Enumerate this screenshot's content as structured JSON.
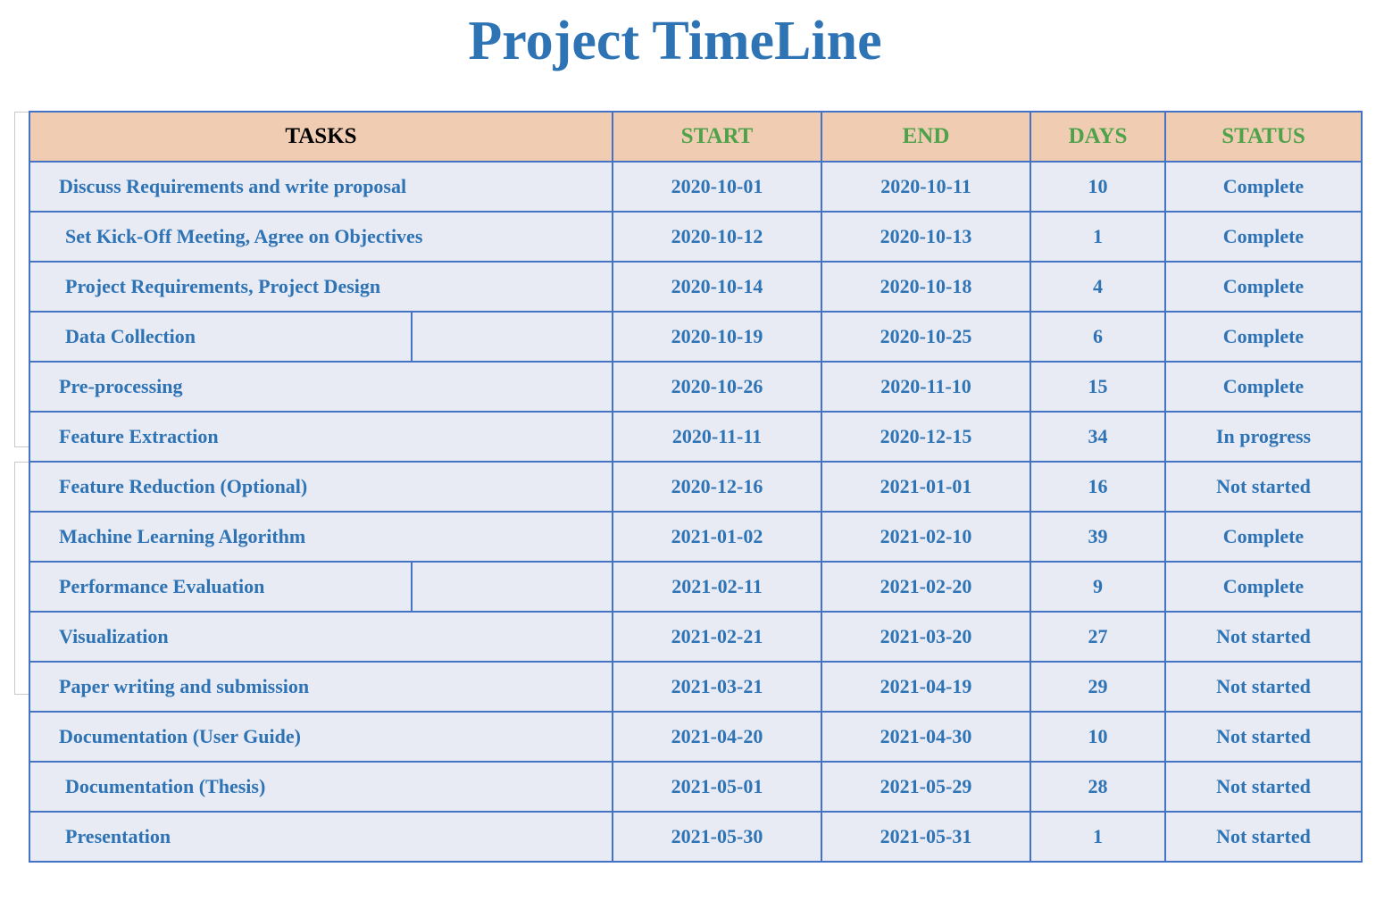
{
  "title": "Project TimeLine",
  "headers": {
    "tasks": "TASKS",
    "start": "START",
    "end": "END",
    "days": "DAYS",
    "status": "STATUS"
  },
  "rows": [
    {
      "task": "Discuss Requirements and write proposal",
      "start": "2020-10-01",
      "end": "2020-10-11",
      "days": "10",
      "status": "Complete"
    },
    {
      "task": "Set Kick-Off Meeting, Agree on Objectives",
      "start": "2020-10-12",
      "end": "2020-10-13",
      "days": "1",
      "status": "Complete"
    },
    {
      "task": "Project Requirements, Project Design",
      "start": "2020-10-14",
      "end": "2020-10-18",
      "days": "4",
      "status": "Complete"
    },
    {
      "task": "Data Collection",
      "start": "2020-10-19",
      "end": "2020-10-25",
      "days": "6",
      "status": "Complete"
    },
    {
      "task": "Pre-processing",
      "start": "2020-10-26",
      "end": "2020-11-10",
      "days": "15",
      "status": "Complete"
    },
    {
      "task": "Feature Extraction",
      "start": "2020-11-11",
      "end": "2020-12-15",
      "days": "34",
      "status": "In progress"
    },
    {
      "task": "Feature Reduction (Optional)",
      "start": "2020-12-16",
      "end": "2021-01-01",
      "days": "16",
      "status": "Not started"
    },
    {
      "task": "Machine Learning Algorithm",
      "start": "2021-01-02",
      "end": "2021-02-10",
      "days": "39",
      "status": "Complete"
    },
    {
      "task": "Performance Evaluation",
      "start": "2021-02-11",
      "end": "2021-02-20",
      "days": "9",
      "status": "Complete"
    },
    {
      "task": "Visualization",
      "start": "2021-02-21",
      "end": "2021-03-20",
      "days": "27",
      "status": "Not started"
    },
    {
      "task": "Paper writing and submission",
      "start": "2021-03-21",
      "end": "2021-04-19",
      "days": "29",
      "status": "Not started"
    },
    {
      "task": "Documentation (User Guide)",
      "start": "2021-04-20",
      "end": "2021-04-30",
      "days": "10",
      "status": "Not started"
    },
    {
      "task": "Documentation (Thesis)",
      "start": "2021-05-01",
      "end": "2021-05-29",
      "days": "28",
      "status": "Not started"
    },
    {
      "task": "Presentation",
      "start": "2021-05-30",
      "end": "2021-05-31",
      "days": "1",
      "status": "Not started"
    }
  ],
  "colors": {
    "title": "#2e74b5",
    "header_bg": "#f0cdb2",
    "header_text_green": "#4ea24a",
    "cell_bg": "#e8eaf4",
    "cell_text_blue": "#2e74b5",
    "border": "#4472c4"
  }
}
